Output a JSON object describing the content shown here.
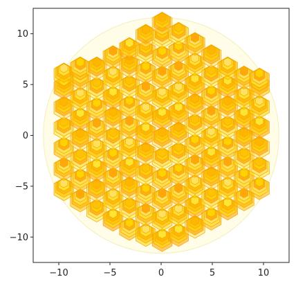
{
  "chart_data": {
    "type": "scatter",
    "title": "",
    "xlabel": "",
    "ylabel": "",
    "xlim": [
      -12.5,
      12.5
    ],
    "ylim": [
      -12.5,
      12.5
    ],
    "x_ticks": [
      -10,
      -5,
      0,
      5,
      10
    ],
    "y_ticks": [
      -10,
      -5,
      0,
      5,
      10
    ],
    "x_tick_labels": [
      "−10",
      "−5",
      "0",
      "5",
      "10"
    ],
    "y_tick_labels": [
      "−10",
      "−5",
      "0",
      "5",
      "10"
    ],
    "grid": false,
    "legend": "none",
    "background_circle": {
      "center": [
        0,
        0
      ],
      "radius": 11.5,
      "color": "#fffde8"
    },
    "marker": "hexagon",
    "hex_spacing": 1.8,
    "colors": [
      "#ffd700",
      "#ffc107",
      "#ffb300",
      "#ffeb3b",
      "#ffe066",
      "#ffa000"
    ],
    "series": [
      {
        "points": [
          [
            -9.5,
            -5.3
          ],
          [
            -9.5,
            -3.3
          ],
          [
            -9.5,
            -1.3
          ],
          [
            -9.5,
            0.7
          ],
          [
            -9.5,
            2.7
          ],
          [
            -9.5,
            4.7
          ],
          [
            -9.5,
            6.0
          ],
          [
            -7.9,
            -6.4
          ],
          [
            -7.9,
            -4.4
          ],
          [
            -7.9,
            -2.4
          ],
          [
            -7.9,
            -0.4
          ],
          [
            -7.9,
            1.6
          ],
          [
            -7.9,
            3.6
          ],
          [
            -7.9,
            5.6
          ],
          [
            -7.9,
            6.6
          ],
          [
            -6.3,
            -7.4
          ],
          [
            -6.3,
            -5.4
          ],
          [
            -6.3,
            -3.4
          ],
          [
            -6.3,
            -1.4
          ],
          [
            -6.3,
            0.6
          ],
          [
            -6.3,
            2.6
          ],
          [
            -6.3,
            4.6
          ],
          [
            -6.3,
            6.6
          ],
          [
            -4.7,
            -8.3
          ],
          [
            -4.7,
            -6.3
          ],
          [
            -4.7,
            -4.3
          ],
          [
            -4.7,
            -2.3
          ],
          [
            -4.7,
            -0.3
          ],
          [
            -4.7,
            1.7
          ],
          [
            -4.7,
            3.7
          ],
          [
            -4.7,
            5.7
          ],
          [
            -4.7,
            7.7
          ],
          [
            -3.1,
            -9.2
          ],
          [
            -3.1,
            -7.2
          ],
          [
            -3.1,
            -5.2
          ],
          [
            -3.1,
            -3.2
          ],
          [
            -3.1,
            -1.2
          ],
          [
            -3.1,
            0.8
          ],
          [
            -3.1,
            2.8
          ],
          [
            -3.1,
            4.8
          ],
          [
            -3.1,
            6.8
          ],
          [
            -3.1,
            8.5
          ],
          [
            -1.5,
            -9.8
          ],
          [
            -1.5,
            -7.8
          ],
          [
            -1.5,
            -5.8
          ],
          [
            -1.5,
            -3.8
          ],
          [
            -1.5,
            -1.8
          ],
          [
            -1.5,
            0.2
          ],
          [
            -1.5,
            2.2
          ],
          [
            -1.5,
            4.2
          ],
          [
            -1.5,
            6.2
          ],
          [
            -1.5,
            8.2
          ],
          [
            -1.5,
            9.8
          ],
          [
            0.1,
            -10.3
          ],
          [
            0.1,
            -8.3
          ],
          [
            0.1,
            -6.3
          ],
          [
            0.1,
            -4.3
          ],
          [
            0.1,
            -2.3
          ],
          [
            0.1,
            -0.3
          ],
          [
            0.1,
            1.7
          ],
          [
            0.1,
            3.7
          ],
          [
            0.1,
            5.7
          ],
          [
            0.1,
            7.7
          ],
          [
            0.1,
            9.7
          ],
          [
            0.1,
            11.0
          ],
          [
            1.7,
            -9.8
          ],
          [
            1.7,
            -7.8
          ],
          [
            1.7,
            -5.8
          ],
          [
            1.7,
            -3.8
          ],
          [
            1.7,
            -1.8
          ],
          [
            1.7,
            0.2
          ],
          [
            1.7,
            2.2
          ],
          [
            1.7,
            4.2
          ],
          [
            1.7,
            6.2
          ],
          [
            1.7,
            8.2
          ],
          [
            1.7,
            10.0
          ],
          [
            3.3,
            -9.0
          ],
          [
            3.3,
            -7.0
          ],
          [
            3.3,
            -5.0
          ],
          [
            3.3,
            -3.0
          ],
          [
            3.3,
            -1.0
          ],
          [
            3.3,
            1.0
          ],
          [
            3.3,
            3.0
          ],
          [
            3.3,
            5.0
          ],
          [
            3.3,
            7.0
          ],
          [
            3.3,
            9.0
          ],
          [
            4.9,
            -8.2
          ],
          [
            4.9,
            -6.2
          ],
          [
            4.9,
            -4.2
          ],
          [
            4.9,
            -2.2
          ],
          [
            4.9,
            -0.2
          ],
          [
            4.9,
            1.8
          ],
          [
            4.9,
            3.8
          ],
          [
            4.9,
            5.8
          ],
          [
            4.9,
            7.8
          ],
          [
            6.5,
            -7.2
          ],
          [
            6.5,
            -5.2
          ],
          [
            6.5,
            -3.2
          ],
          [
            6.5,
            -1.2
          ],
          [
            6.5,
            0.8
          ],
          [
            6.5,
            2.8
          ],
          [
            6.5,
            4.8
          ],
          [
            6.5,
            6.6
          ],
          [
            8.1,
            -6.3
          ],
          [
            8.1,
            -4.3
          ],
          [
            8.1,
            -2.3
          ],
          [
            8.1,
            -0.3
          ],
          [
            8.1,
            1.7
          ],
          [
            8.1,
            3.7
          ],
          [
            8.1,
            5.7
          ],
          [
            9.6,
            -5.2
          ],
          [
            9.6,
            -3.2
          ],
          [
            9.6,
            -1.2
          ],
          [
            9.6,
            0.8
          ],
          [
            9.6,
            2.8
          ],
          [
            9.6,
            4.8
          ],
          [
            9.6,
            5.5
          ]
        ]
      }
    ]
  }
}
